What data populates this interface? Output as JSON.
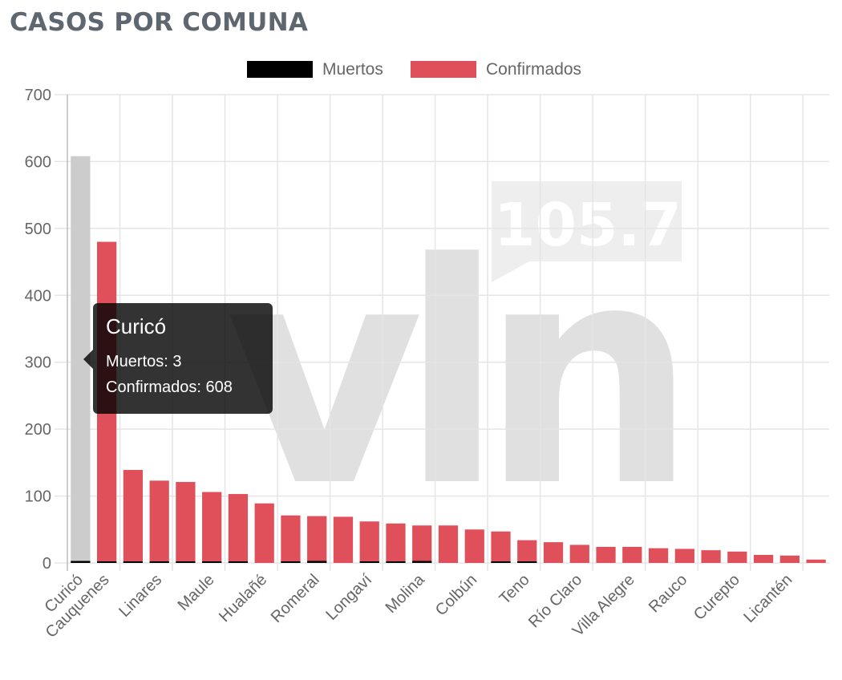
{
  "page": {
    "title": "CASOS POR COMUNA"
  },
  "watermark": {
    "text": "105.7",
    "logo": "vln"
  },
  "colors": {
    "muertos": "#000000",
    "confirmados": "#e0505a",
    "highlight": "#cccccc",
    "grid": "#e5e5e5",
    "text": "#666666"
  },
  "tooltip": {
    "title": "Curicó",
    "muertos_line": "Muertos: 3",
    "confirmados_line": "Confirmados: 608"
  },
  "chart_data": {
    "type": "bar",
    "title": "",
    "xlabel": "",
    "ylabel": "",
    "ylim": [
      0,
      700
    ],
    "yticks": [
      0,
      100,
      200,
      300,
      400,
      500,
      600,
      700
    ],
    "grid": true,
    "legend_position": "top-center",
    "categories": [
      "Curicó",
      "Cauquenes",
      "",
      "Linares",
      "",
      "Maule",
      "",
      "Hualañé",
      "",
      "Romeral",
      "",
      "Longaví",
      "",
      "Molina",
      "",
      "Colbún",
      "",
      "Teno",
      "",
      "Río Claro",
      "",
      "Villa Alegre",
      "",
      "Rauco",
      "",
      "Curepto",
      "",
      "Licantén",
      ""
    ],
    "series": [
      {
        "name": "Muertos",
        "values": [
          3,
          2,
          2,
          1,
          1,
          1,
          1,
          0,
          1,
          3,
          0,
          1,
          2,
          3,
          0,
          0,
          1,
          1,
          0,
          0,
          0,
          0,
          0,
          0,
          0,
          0,
          0,
          0,
          0
        ]
      },
      {
        "name": "Confirmados",
        "values": [
          608,
          480,
          139,
          123,
          121,
          106,
          103,
          89,
          71,
          70,
          69,
          62,
          59,
          56,
          56,
          50,
          47,
          34,
          31,
          27,
          24,
          24,
          22,
          21,
          19,
          17,
          12,
          11,
          5
        ]
      }
    ],
    "highlighted_index": 0
  }
}
